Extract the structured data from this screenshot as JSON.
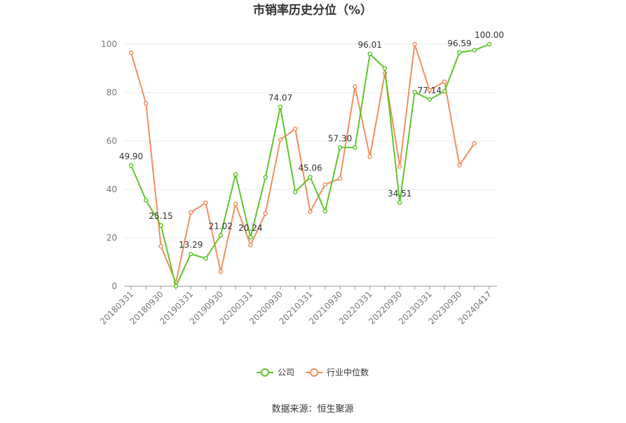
{
  "chart_data": {
    "type": "line",
    "title": "市销率历史分位（%）",
    "source": "数据来源：恒生聚源",
    "ylim": [
      0,
      100
    ],
    "yticks": [
      0,
      20,
      40,
      60,
      80,
      100
    ],
    "xtick_labels": [
      "20180331",
      "20180930",
      "20190331",
      "20190930",
      "20200331",
      "20200930",
      "20210331",
      "20210930",
      "20220331",
      "20220930",
      "20230331",
      "20230930",
      "20240417"
    ],
    "legend": {
      "position": "bottom-center",
      "labels": [
        "公司",
        "行业中位数"
      ]
    },
    "colors": {
      "company": "#5ec62a",
      "industry": "#f28e5f",
      "grid": "#e9e9e9",
      "axis": "#999999"
    },
    "series": [
      {
        "name": "公司",
        "values": [
          49.9,
          35.5,
          25.15,
          0,
          13.29,
          11.5,
          21.02,
          46.2,
          20.24,
          45.0,
          74.07,
          39.0,
          45.06,
          31.0,
          57.3,
          57.3,
          96.01,
          90.0,
          34.51,
          80.2,
          77.14,
          80.5,
          96.59,
          97.5,
          100.0
        ],
        "labels": [
          "49.90",
          "",
          "25.15",
          "",
          "13.29",
          "",
          "21.02",
          "",
          "20.24",
          "",
          "74.07",
          "",
          "45.06",
          "",
          "57.30",
          "",
          "96.01",
          "",
          "34.51",
          "",
          "77.14",
          "",
          "96.59",
          "",
          "100.00"
        ]
      },
      {
        "name": "行业中位数",
        "values": [
          96.5,
          75.5,
          16.5,
          1.5,
          30.5,
          34.5,
          6.0,
          34.0,
          17.0,
          30.0,
          60.5,
          65.0,
          30.8,
          42.0,
          44.5,
          82.5,
          53.5,
          88.0,
          49.5,
          100.0,
          81.0,
          84.5,
          50.0,
          59.0,
          null
        ]
      }
    ]
  }
}
